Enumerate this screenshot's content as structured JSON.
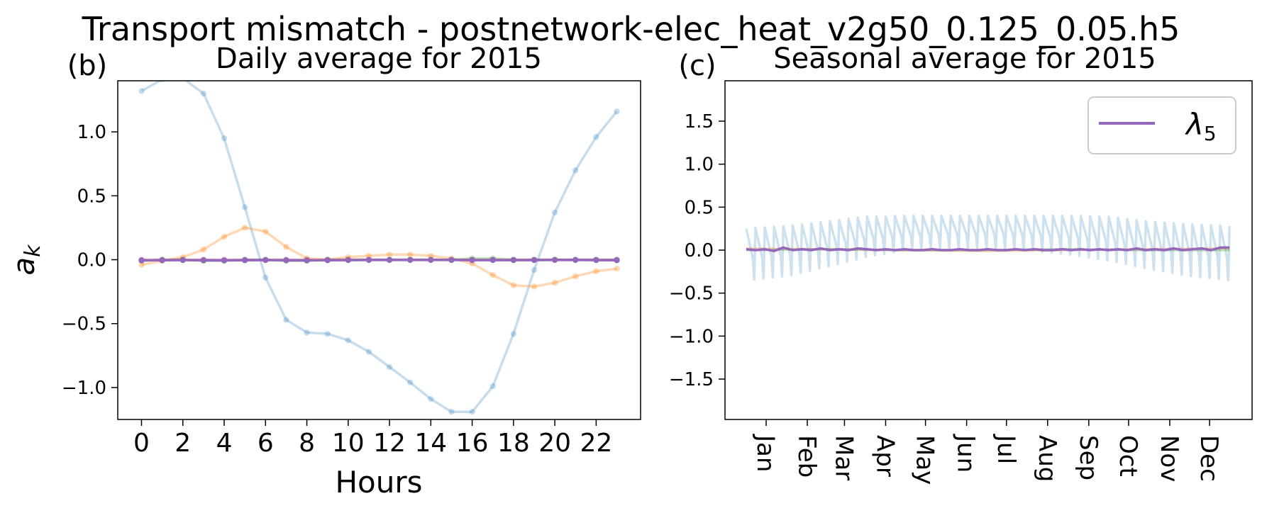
{
  "figure": {
    "suptitle": "Transport mismatch - postnetwork-elec_heat_v2g50_0.125_0.05.h5"
  },
  "chart_data": [
    {
      "id": "daily",
      "type": "line",
      "panel_label": "(b)",
      "title": "Daily average for 2015",
      "xlabel": "Hours",
      "ylabel": "a_k",
      "ylabel_display": "a",
      "ylabel_sub": "k",
      "xlim": [
        -1.15,
        24.15
      ],
      "ylim": [
        -1.25,
        1.4
      ],
      "xticks": [
        0,
        2,
        4,
        6,
        8,
        10,
        12,
        14,
        16,
        18,
        20,
        22
      ],
      "xtick_labels": [
        "0",
        "2",
        "4",
        "6",
        "8",
        "10",
        "12",
        "14",
        "16",
        "18",
        "20",
        "22"
      ],
      "yticks": [
        -1.0,
        -0.5,
        0.0,
        0.5,
        1.0
      ],
      "ytick_labels": [
        "−1.0",
        "−0.5",
        "0.0",
        "0.5",
        "1.0"
      ],
      "grid": false,
      "x": [
        0,
        1,
        2,
        3,
        4,
        5,
        6,
        7,
        8,
        9,
        10,
        11,
        12,
        13,
        14,
        15,
        16,
        17,
        18,
        19,
        20,
        21,
        22,
        23
      ],
      "series": [
        {
          "color": "#1f77b4",
          "opacity": 0.25,
          "markers": true,
          "values": [
            1.32,
            1.41,
            1.42,
            1.3,
            0.95,
            0.41,
            -0.14,
            -0.47,
            -0.57,
            -0.58,
            -0.63,
            -0.72,
            -0.84,
            -0.96,
            -1.09,
            -1.19,
            -1.19,
            -0.99,
            -0.58,
            -0.08,
            0.37,
            0.7,
            0.96,
            1.16
          ]
        },
        {
          "color": "#ff7f0e",
          "opacity": 0.3,
          "markers": true,
          "values": [
            -0.04,
            -0.01,
            0.02,
            0.08,
            0.18,
            0.25,
            0.22,
            0.1,
            0.01,
            0.0,
            0.02,
            0.03,
            0.04,
            0.04,
            0.03,
            0.01,
            -0.03,
            -0.12,
            -0.2,
            -0.21,
            -0.18,
            -0.13,
            -0.09,
            -0.07
          ]
        },
        {
          "color": "#2ca02c",
          "opacity": 0.3,
          "markers": true,
          "values": [
            -0.01,
            0.0,
            0.0,
            -0.01,
            -0.01,
            0.0,
            0.0,
            -0.01,
            -0.01,
            0.0,
            0.0,
            0.0,
            0.0,
            0.0,
            0.0,
            0.0,
            0.01,
            0.01,
            0.0,
            0.0,
            0.0,
            0.0,
            0.0,
            0.0
          ]
        },
        {
          "color": "#d62728",
          "opacity": 0.3,
          "markers": true,
          "values": [
            0.0,
            0.0,
            0.0,
            0.0,
            0.0,
            0.0,
            0.0,
            0.0,
            0.0,
            0.0,
            0.0,
            0.0,
            0.0,
            0.0,
            0.0,
            0.0,
            0.0,
            0.0,
            0.0,
            0.0,
            0.0,
            0.0,
            0.0,
            0.0
          ]
        },
        {
          "color": "#9467bd",
          "opacity": 1.0,
          "markers": true,
          "values": [
            -0.005,
            -0.004,
            -0.003,
            -0.004,
            -0.005,
            -0.004,
            -0.003,
            -0.004,
            -0.005,
            -0.004,
            -0.003,
            -0.002,
            -0.002,
            -0.002,
            -0.002,
            -0.002,
            -0.003,
            -0.003,
            -0.003,
            -0.003,
            -0.002,
            -0.002,
            -0.003,
            -0.004
          ]
        }
      ]
    },
    {
      "id": "seasonal",
      "type": "line",
      "panel_label": "(c)",
      "title": "Seasonal average for 2015",
      "xlim": [
        -16,
        381
      ],
      "ylim": [
        -1.97,
        1.97
      ],
      "yticks": [
        -1.5,
        -1.0,
        -0.5,
        0.0,
        0.5,
        1.0,
        1.5
      ],
      "ytick_labels": [
        "−1.5",
        "−1.0",
        "−0.5",
        "0.0",
        "0.5",
        "1.0",
        "1.5"
      ],
      "xticks": [
        15,
        46,
        74,
        105,
        135,
        166,
        196,
        227,
        258,
        288,
        319,
        349
      ],
      "xtick_labels": [
        "Jan",
        "Feb",
        "Mar",
        "Apr",
        "May",
        "Jun",
        "Jul",
        "Aug",
        "Sep",
        "Oct",
        "Nov",
        "Dec"
      ],
      "grid": false,
      "legend": {
        "position": "upper right",
        "entries": [
          {
            "label": "λ",
            "subscript": "5",
            "color": "#9467bd"
          }
        ]
      },
      "series": [
        {
          "color": "#1f77b4",
          "opacity": 0.22,
          "weekly_oscillation": true,
          "x": [
            0,
            31,
            59,
            90,
            120,
            151,
            181,
            212,
            243,
            273,
            304,
            334,
            364
          ],
          "envelope_high": [
            0.25,
            0.28,
            0.33,
            0.39,
            0.4,
            0.4,
            0.4,
            0.4,
            0.4,
            0.39,
            0.33,
            0.3,
            0.28
          ],
          "envelope_low": [
            -0.35,
            -0.3,
            -0.2,
            -0.08,
            0.0,
            0.02,
            0.02,
            0.0,
            -0.05,
            -0.12,
            -0.22,
            -0.3,
            -0.35
          ]
        },
        {
          "color": "#ff7f0e",
          "opacity": 0.3,
          "x": [
            0,
            60,
            120,
            180,
            240,
            300,
            364
          ],
          "values": [
            0.02,
            0.01,
            0.0,
            -0.01,
            0.0,
            0.01,
            0.02
          ]
        },
        {
          "color": "#2ca02c",
          "opacity": 0.3,
          "x": [
            0,
            60,
            120,
            180,
            240,
            300,
            364
          ],
          "values": [
            0.0,
            0.01,
            0.0,
            0.0,
            0.01,
            0.0,
            0.0
          ]
        },
        {
          "color": "#9467bd",
          "opacity": 1.0,
          "label": "λ5",
          "x": [
            0,
            7,
            14,
            21,
            28,
            35,
            42,
            49,
            56,
            63,
            70,
            77,
            84,
            91,
            98,
            105,
            112,
            119,
            126,
            133,
            140,
            147,
            154,
            161,
            168,
            175,
            182,
            189,
            196,
            203,
            210,
            217,
            224,
            231,
            238,
            245,
            252,
            259,
            266,
            273,
            280,
            287,
            294,
            301,
            308,
            315,
            322,
            329,
            336,
            343,
            350,
            357,
            364
          ],
          "values": [
            0.01,
            0.0,
            0.01,
            -0.01,
            0.03,
            0.0,
            0.01,
            0.0,
            0.02,
            0.0,
            0.01,
            0.0,
            0.02,
            0.01,
            0.0,
            0.01,
            0.0,
            0.01,
            0.0,
            0.0,
            0.01,
            0.0,
            0.0,
            0.01,
            0.0,
            0.0,
            0.01,
            0.0,
            0.0,
            0.01,
            0.0,
            0.01,
            0.0,
            0.0,
            0.01,
            0.0,
            0.01,
            0.0,
            0.01,
            0.0,
            0.01,
            0.0,
            0.02,
            0.0,
            0.01,
            0.0,
            0.02,
            0.0,
            0.01,
            0.02,
            0.0,
            0.03,
            0.03
          ]
        }
      ]
    }
  ]
}
